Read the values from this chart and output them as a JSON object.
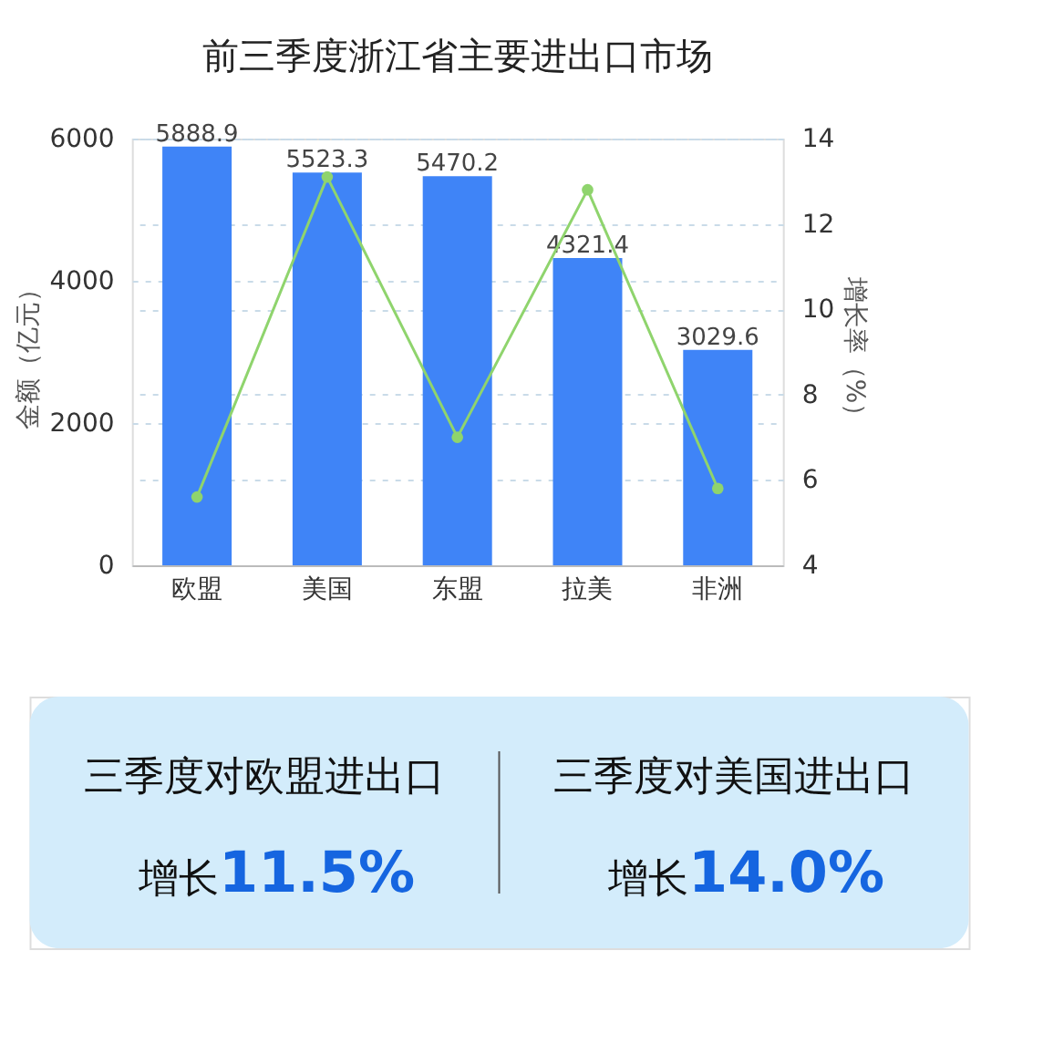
{
  "chart_data": {
    "type": "bar",
    "title": "前三季度浙江省主要进出口市场",
    "categories": [
      "欧盟",
      "美国",
      "东盟",
      "拉美",
      "非洲"
    ],
    "ylabel": "金额（亿元）",
    "y2label": "增长率（%）",
    "ylim": [
      0,
      6000
    ],
    "yticks": [
      0,
      2000,
      4000,
      6000
    ],
    "y2lim": [
      4,
      14
    ],
    "y2ticks": [
      4,
      6,
      8,
      10,
      12,
      14
    ],
    "grid": "y",
    "series": [
      {
        "color": "#3f84f7",
        "values": [
          5888.9,
          5523.3,
          5470.2,
          4321.4,
          3029.6
        ],
        "value_labels": [
          "5888.9",
          "5523.3",
          "5470.2",
          "4321.4",
          "3029.6"
        ]
      },
      {
        "type": "line",
        "axis": "y2",
        "color": "#8fd46d",
        "marker": "circle",
        "values": [
          5.6,
          13.1,
          7.0,
          12.8,
          5.8
        ]
      }
    ],
    "annotations": [
      "三季度对欧盟进出口",
      "增长11.5%",
      "三季度对美国进出口",
      "增长14.0%"
    ]
  }
}
